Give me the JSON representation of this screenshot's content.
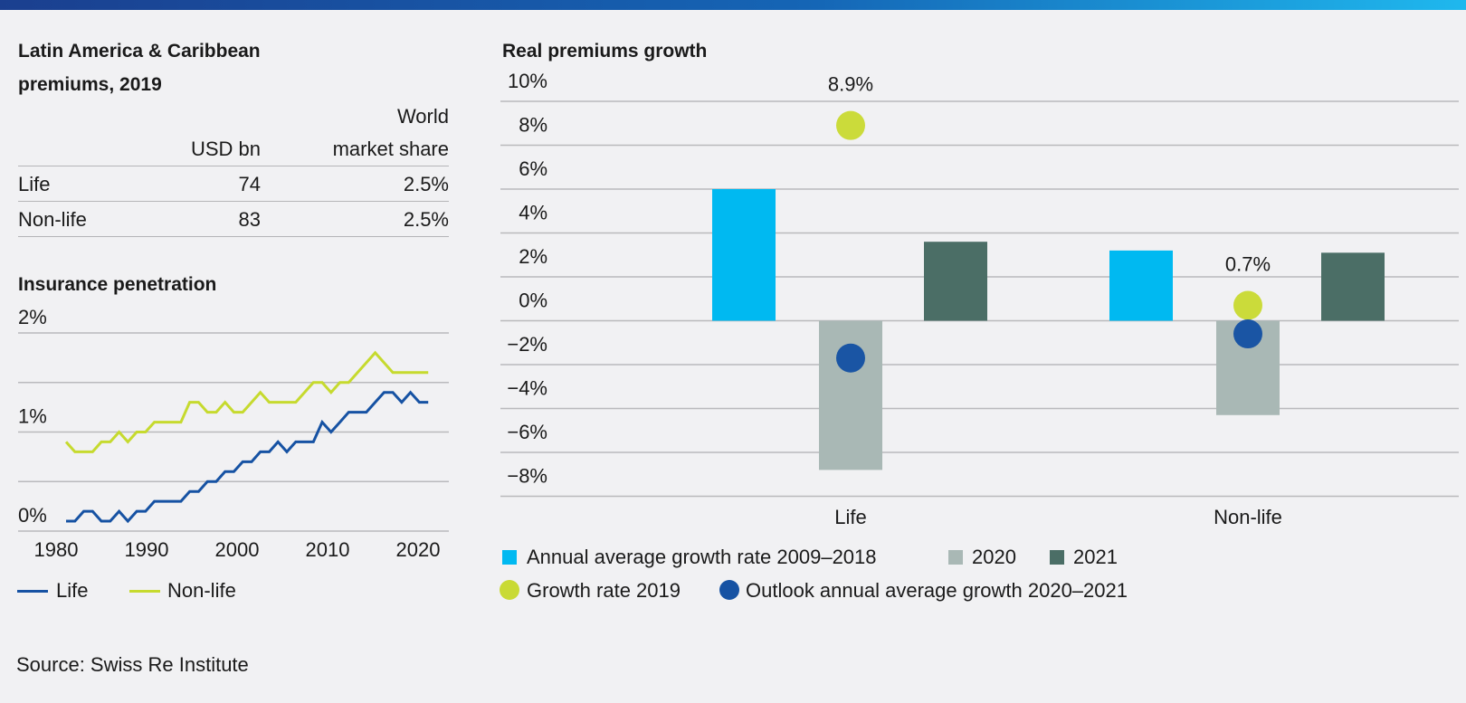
{
  "colors": {
    "cyan": "#00b9f1",
    "grey": "#a9b8b5",
    "dark_green": "#4b6e66",
    "lime": "#c9da34",
    "blue": "#1652a3",
    "life_line": "#1652a3",
    "nonlife_line": "#c6da2e",
    "grid": "#b9b9bc"
  },
  "left": {
    "title_line1": "Latin America & Caribbean",
    "title_line2": "premiums, 2019",
    "table": {
      "headers": [
        "",
        "USD bn",
        "World market share"
      ],
      "header_world": "World",
      "header_market_share": "market share",
      "rows": [
        {
          "label": "Life",
          "usd_bn": "74",
          "share": "2.5%"
        },
        {
          "label": "Non-life",
          "usd_bn": "83",
          "share": "2.5%"
        }
      ]
    },
    "source": "Source: Swiss Re Institute"
  },
  "chart_data": [
    {
      "type": "line",
      "title": "Insurance penetration",
      "ylim": [
        0,
        2
      ],
      "yticks": [
        "0%",
        "1%",
        "2%"
      ],
      "xticks": [
        "1980",
        "1990",
        "2000",
        "2010",
        "2020"
      ],
      "grid": true,
      "legend": "bottom",
      "x_start": 1980,
      "series": [
        {
          "name": "Life",
          "values": [
            0.1,
            0.1,
            0.2,
            0.2,
            0.1,
            0.1,
            0.2,
            0.1,
            0.2,
            0.2,
            0.3,
            0.3,
            0.3,
            0.3,
            0.4,
            0.4,
            0.5,
            0.5,
            0.6,
            0.6,
            0.7,
            0.7,
            0.8,
            0.8,
            0.9,
            0.8,
            0.9,
            0.9,
            0.9,
            1.1,
            1.0,
            1.1,
            1.2,
            1.2,
            1.2,
            1.3,
            1.4,
            1.4,
            1.3,
            1.4,
            1.3,
            1.3
          ]
        },
        {
          "name": "Non-life",
          "values": [
            0.9,
            0.8,
            0.8,
            0.8,
            0.9,
            0.9,
            1.0,
            0.9,
            1.0,
            1.0,
            1.1,
            1.1,
            1.1,
            1.1,
            1.3,
            1.3,
            1.2,
            1.2,
            1.3,
            1.2,
            1.2,
            1.3,
            1.4,
            1.3,
            1.3,
            1.3,
            1.3,
            1.4,
            1.5,
            1.5,
            1.4,
            1.5,
            1.5,
            1.6,
            1.7,
            1.8,
            1.7,
            1.6,
            1.6,
            1.6,
            1.6,
            1.6
          ]
        }
      ]
    },
    {
      "type": "bar",
      "title": "Real premiums growth",
      "categories": [
        "Life",
        "Non-life"
      ],
      "ylim": [
        -8,
        10
      ],
      "yticks": [
        "10%",
        "8%",
        "6%",
        "4%",
        "2%",
        "0%",
        "−2%",
        "−4%",
        "−6%",
        "−8%"
      ],
      "grid": true,
      "legend": "bottom",
      "series": [
        {
          "name": "Annual average growth rate 2009–2018",
          "values": [
            6.0,
            3.2
          ]
        },
        {
          "name": "2020",
          "values": [
            -6.8,
            -4.3
          ]
        },
        {
          "name": "2021",
          "values": [
            3.6,
            3.1
          ]
        }
      ],
      "points": [
        {
          "name": "Growth rate 2019",
          "values": [
            8.9,
            0.7
          ],
          "labels": [
            "8.9%",
            "0.7%"
          ]
        },
        {
          "name": "Outlook annual average growth 2020–2021",
          "values": [
            -1.7,
            -0.6
          ]
        }
      ]
    }
  ]
}
